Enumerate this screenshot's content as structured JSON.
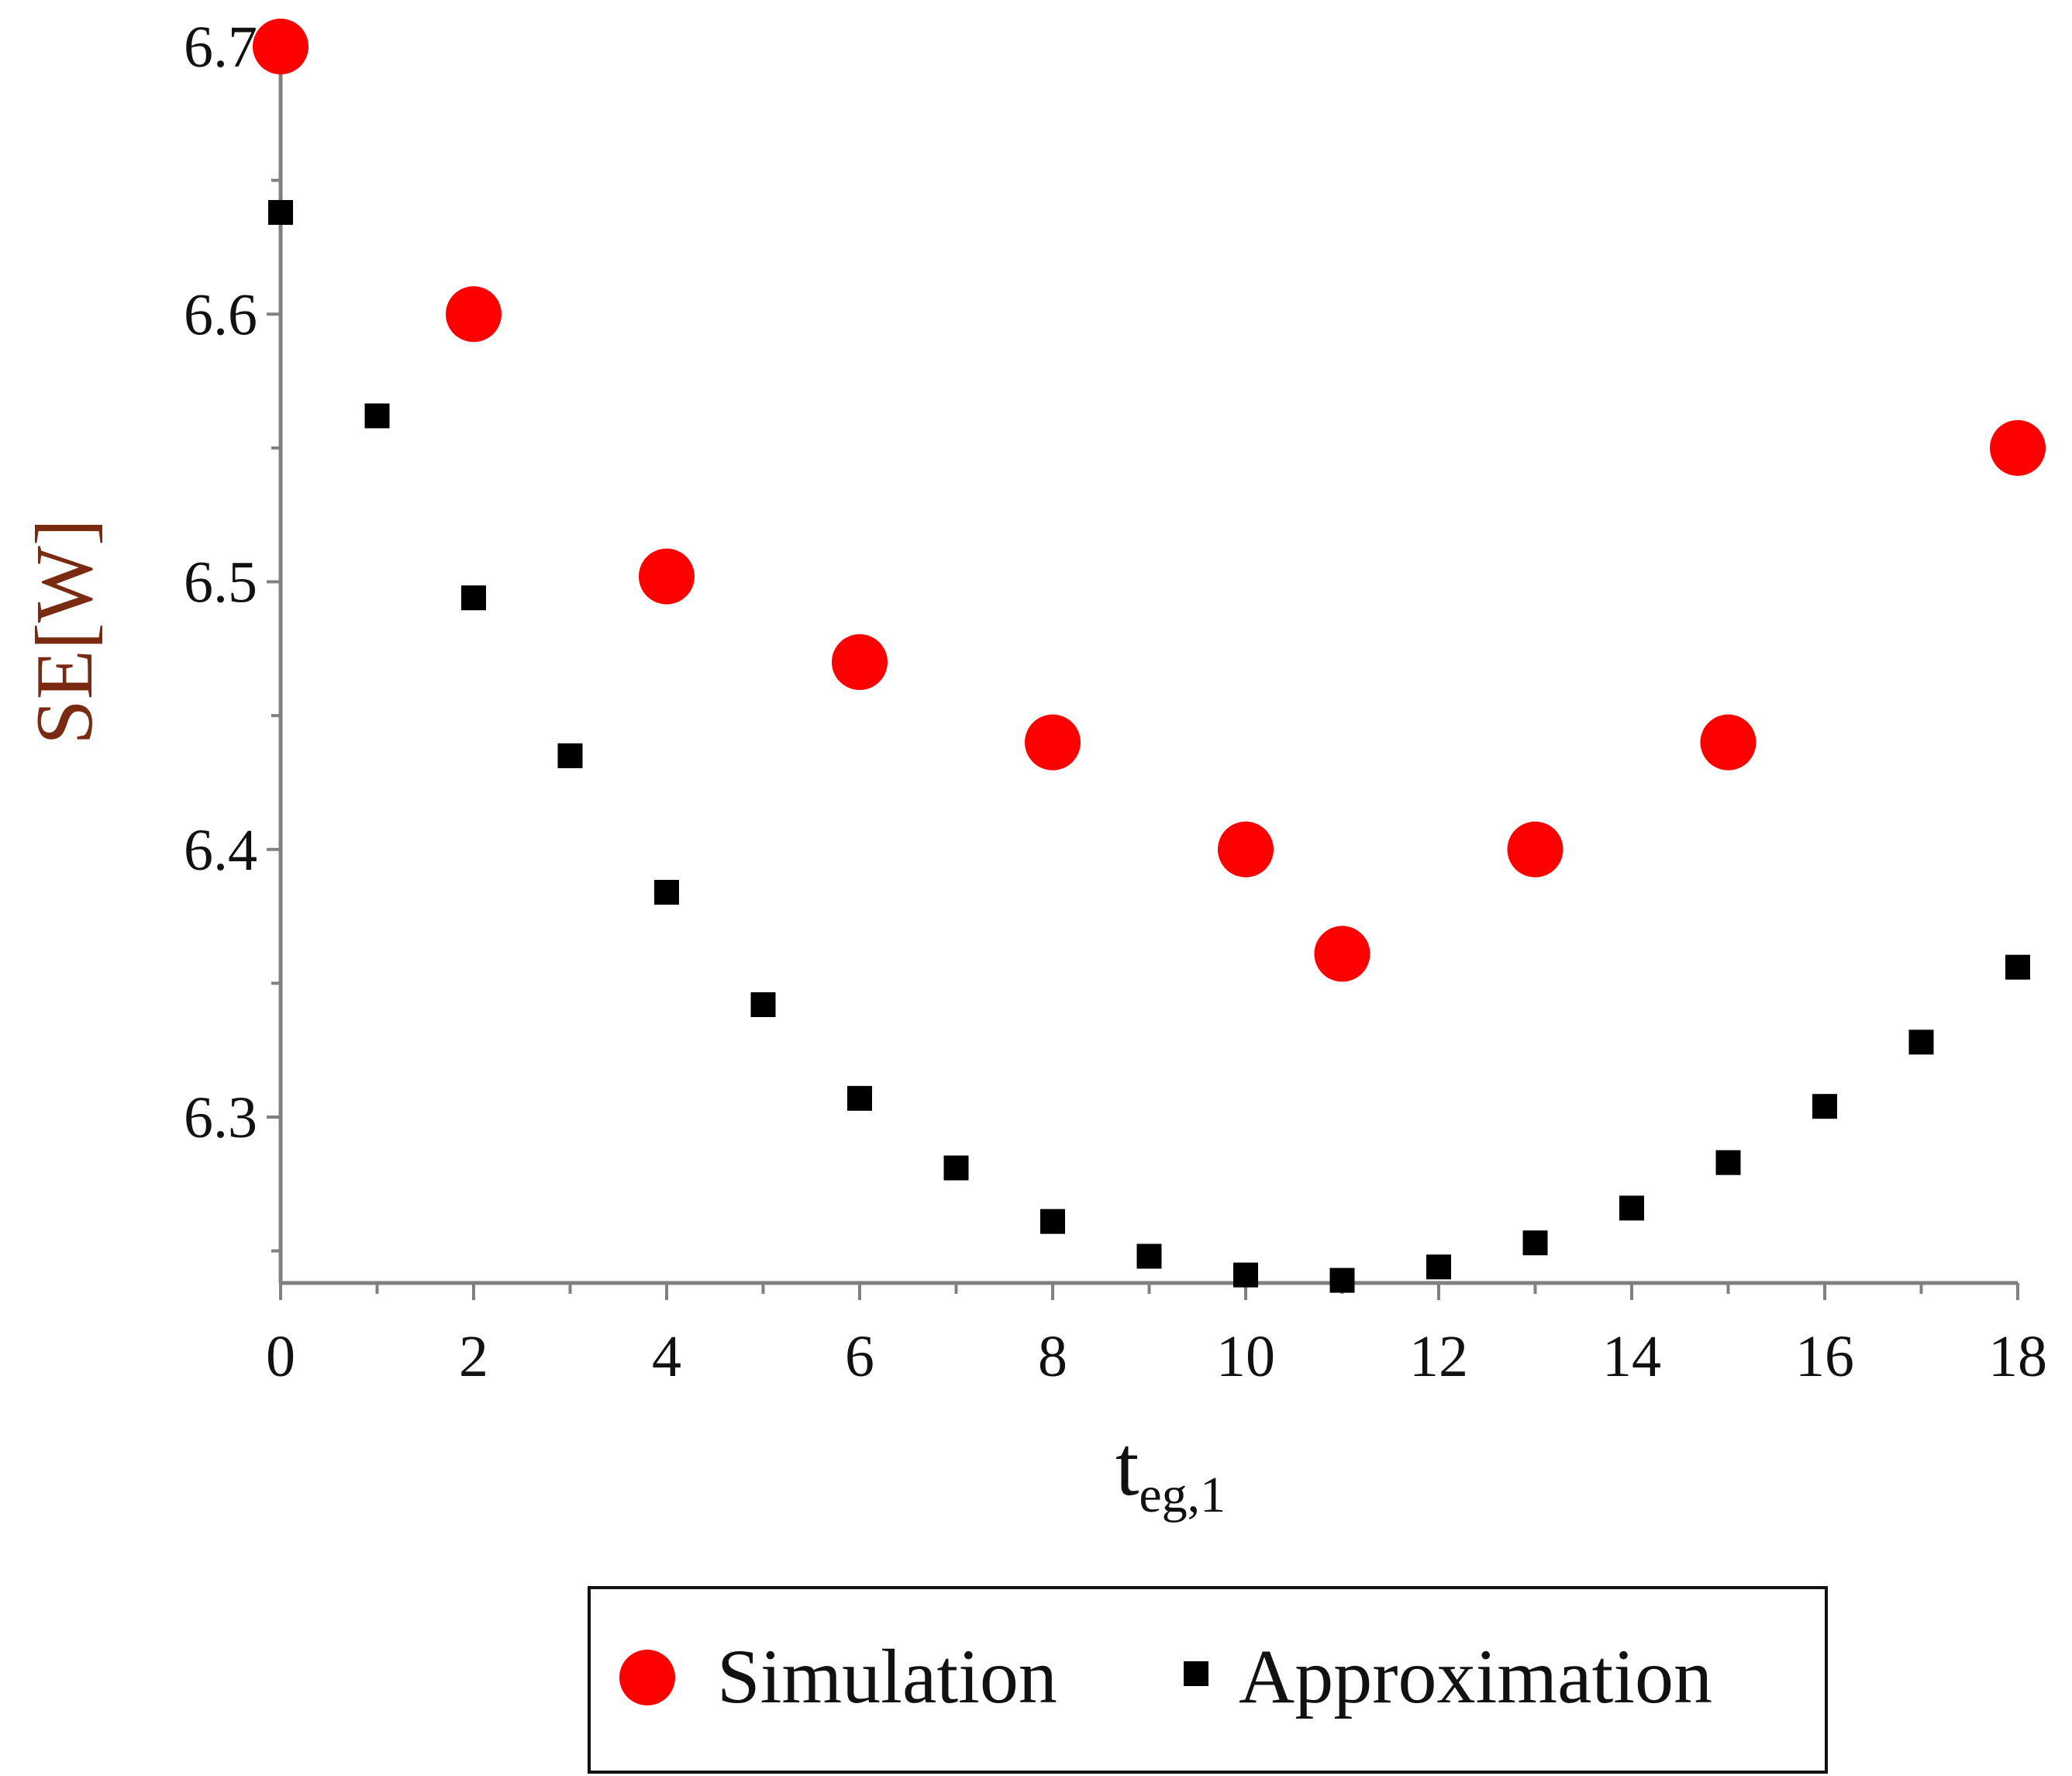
{
  "chart_data": {
    "type": "scatter",
    "title": "",
    "xlabel": "t",
    "xlabel_subscript": "eg,1",
    "ylabel": "SE[W]",
    "xlim": [
      0,
      18
    ],
    "ylim": [
      6.237,
      6.705
    ],
    "x_ticks": [
      0,
      2,
      4,
      6,
      8,
      10,
      12,
      14,
      16,
      18
    ],
    "x_tick_labels": [
      "0",
      "2",
      "4",
      "6",
      "8",
      "10",
      "12",
      "14",
      "16",
      "18"
    ],
    "y_ticks": [
      6.3,
      6.4,
      6.5,
      6.6,
      6.7
    ],
    "y_tick_labels": [
      "6.3",
      "6.4",
      "6.5",
      "6.6",
      "6.7"
    ],
    "grid": false,
    "legend_position": "bottom",
    "series": [
      {
        "name": "Simulation",
        "marker": "circle",
        "color": "#ff0000",
        "x": [
          0,
          2,
          4,
          6,
          8,
          10,
          11,
          13,
          15,
          18
        ],
        "y": [
          6.7,
          6.6,
          6.502,
          6.47,
          6.44,
          6.4,
          6.361,
          6.4,
          6.44,
          6.55
        ]
      },
      {
        "name": "Approximation",
        "marker": "square",
        "color": "#000000",
        "x": [
          0,
          1,
          2,
          3,
          4,
          5,
          6,
          7,
          8,
          9,
          10,
          11,
          12,
          13,
          14,
          15,
          16,
          17,
          18
        ],
        "y": [
          6.638,
          6.562,
          6.494,
          6.435,
          6.384,
          6.342,
          6.307,
          6.281,
          6.261,
          6.248,
          6.241,
          6.239,
          6.244,
          6.253,
          6.266,
          6.283,
          6.304,
          6.328,
          6.356
        ]
      }
    ]
  }
}
